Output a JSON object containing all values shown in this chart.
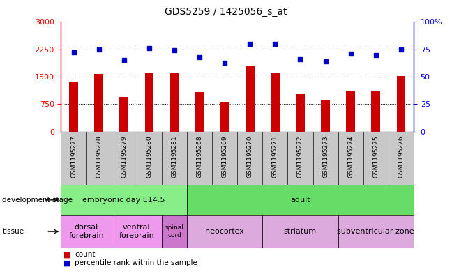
{
  "title": "GDS5259 / 1425056_s_at",
  "samples": [
    "GSM1195277",
    "GSM1195278",
    "GSM1195279",
    "GSM1195280",
    "GSM1195281",
    "GSM1195268",
    "GSM1195269",
    "GSM1195270",
    "GSM1195271",
    "GSM1195272",
    "GSM1195273",
    "GSM1195274",
    "GSM1195275",
    "GSM1195276"
  ],
  "counts": [
    1350,
    1580,
    950,
    1620,
    1620,
    1080,
    820,
    1800,
    1600,
    1020,
    850,
    1100,
    1100,
    1520
  ],
  "percentiles": [
    72,
    75,
    65,
    76,
    74,
    68,
    63,
    80,
    80,
    66,
    64,
    71,
    70,
    75
  ],
  "left_ylim": [
    0,
    3000
  ],
  "right_ylim": [
    0,
    100
  ],
  "left_yticks": [
    0,
    750,
    1500,
    2250,
    3000
  ],
  "right_yticks": [
    0,
    25,
    50,
    75,
    100
  ],
  "right_yticklabels": [
    "0",
    "25",
    "50",
    "75",
    "100%"
  ],
  "bar_color": "#cc0000",
  "dot_color": "#0000cc",
  "dev_stage_rows": [
    {
      "label": "embryonic day E14.5",
      "start": 0,
      "end": 5,
      "color": "#88ee88"
    },
    {
      "label": "adult",
      "start": 5,
      "end": 14,
      "color": "#66dd66"
    }
  ],
  "tissue_rows": [
    {
      "label": "dorsal\nforebrain",
      "start": 0,
      "end": 2,
      "color": "#ee99ee"
    },
    {
      "label": "ventral\nforebrain",
      "start": 2,
      "end": 4,
      "color": "#ee99ee"
    },
    {
      "label": "spinal\ncord",
      "start": 4,
      "end": 5,
      "color": "#cc77cc"
    },
    {
      "label": "neocortex",
      "start": 5,
      "end": 8,
      "color": "#ddaadd"
    },
    {
      "label": "striatum",
      "start": 8,
      "end": 11,
      "color": "#ddaadd"
    },
    {
      "label": "subventricular zone",
      "start": 11,
      "end": 14,
      "color": "#ddaadd"
    }
  ]
}
